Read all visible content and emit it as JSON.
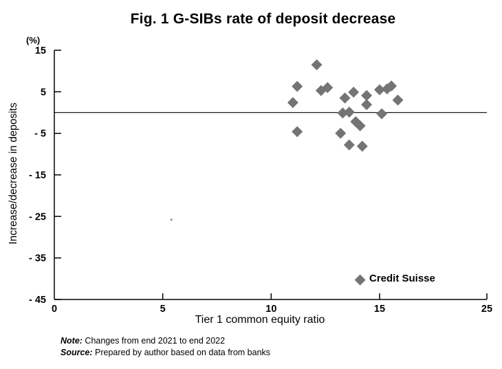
{
  "title": "Fig. 1 G-SIBs rate of deposit decrease",
  "y_axis": {
    "unit_label": "(%)",
    "axis_label": "Increase/decrease in deposits",
    "ticks": [
      15,
      5,
      -5,
      -15,
      -25,
      -35,
      -45
    ],
    "tick_labels": [
      "15",
      "5",
      "- 5",
      "- 15",
      "- 25",
      "- 35",
      "- 45"
    ],
    "min": -45,
    "max": 15
  },
  "x_axis": {
    "axis_label": "Tier 1 common equity ratio",
    "ticks": [
      0,
      5,
      10,
      15,
      25
    ],
    "tick_labels": [
      "0",
      "5",
      "10",
      "15",
      "25"
    ],
    "min": 0,
    "max": 25
  },
  "legend": {
    "label": "Credit Suisse",
    "marker": "diamond-icon"
  },
  "notes": [
    {
      "lead": "Note:",
      "text": " Changes from end 2021 to end 2022"
    },
    {
      "lead": "Source:",
      "text": " Prepared by author based on data from banks"
    }
  ],
  "colors": {
    "marker": "#747474",
    "axis": "#000000",
    "zero_line": "#1a1a1a",
    "text": "#000000",
    "background": "#ffffff"
  },
  "chart_data": {
    "type": "scatter",
    "title": "Fig. 1 G-SIBs rate of deposit decrease",
    "xlabel": "Tier 1 common equity ratio",
    "ylabel": "Increase/decrease in deposits (%)",
    "xlim": [
      0,
      25
    ],
    "ylim": [
      -45,
      15
    ],
    "x_ticks": [
      0,
      5,
      10,
      15,
      25
    ],
    "y_ticks": [
      15,
      5,
      -5,
      -15,
      -25,
      -35,
      -45
    ],
    "x_axis_note": "tick spacing uneven: the 25 label sits at the axis end, compressed beyond 15",
    "grid": false,
    "zero_line": true,
    "legend_position": "inside lower-right, label attached to Credit Suisse point",
    "marker": "diamond",
    "marker_color": "#747474",
    "points": [
      {
        "x": 12.1,
        "y": 11.5
      },
      {
        "x": 11.2,
        "y": 6.3
      },
      {
        "x": 12.3,
        "y": 5.3
      },
      {
        "x": 12.6,
        "y": 6.0
      },
      {
        "x": 11.0,
        "y": 2.4
      },
      {
        "x": 13.4,
        "y": 3.5
      },
      {
        "x": 13.8,
        "y": 4.9
      },
      {
        "x": 14.4,
        "y": 4.1
      },
      {
        "x": 14.4,
        "y": 1.9
      },
      {
        "x": 15.0,
        "y": 5.5
      },
      {
        "x": 15.7,
        "y": 5.7
      },
      {
        "x": 16.1,
        "y": 6.4
      },
      {
        "x": 16.7,
        "y": 3.0
      },
      {
        "x": 15.2,
        "y": -0.3
      },
      {
        "x": 13.3,
        "y": -0.1
      },
      {
        "x": 13.6,
        "y": 0.1
      },
      {
        "x": 13.9,
        "y": -2.2
      },
      {
        "x": 14.1,
        "y": -3.2
      },
      {
        "x": 11.2,
        "y": -4.6
      },
      {
        "x": 13.2,
        "y": -5.0
      },
      {
        "x": 13.6,
        "y": -7.8
      },
      {
        "x": 14.2,
        "y": -8.1
      }
    ],
    "labeled_point": {
      "label": "Credit Suisse",
      "x": 14.1,
      "y": -40.3
    },
    "stray_mark": {
      "x": 5.4,
      "y": -25.8
    }
  }
}
